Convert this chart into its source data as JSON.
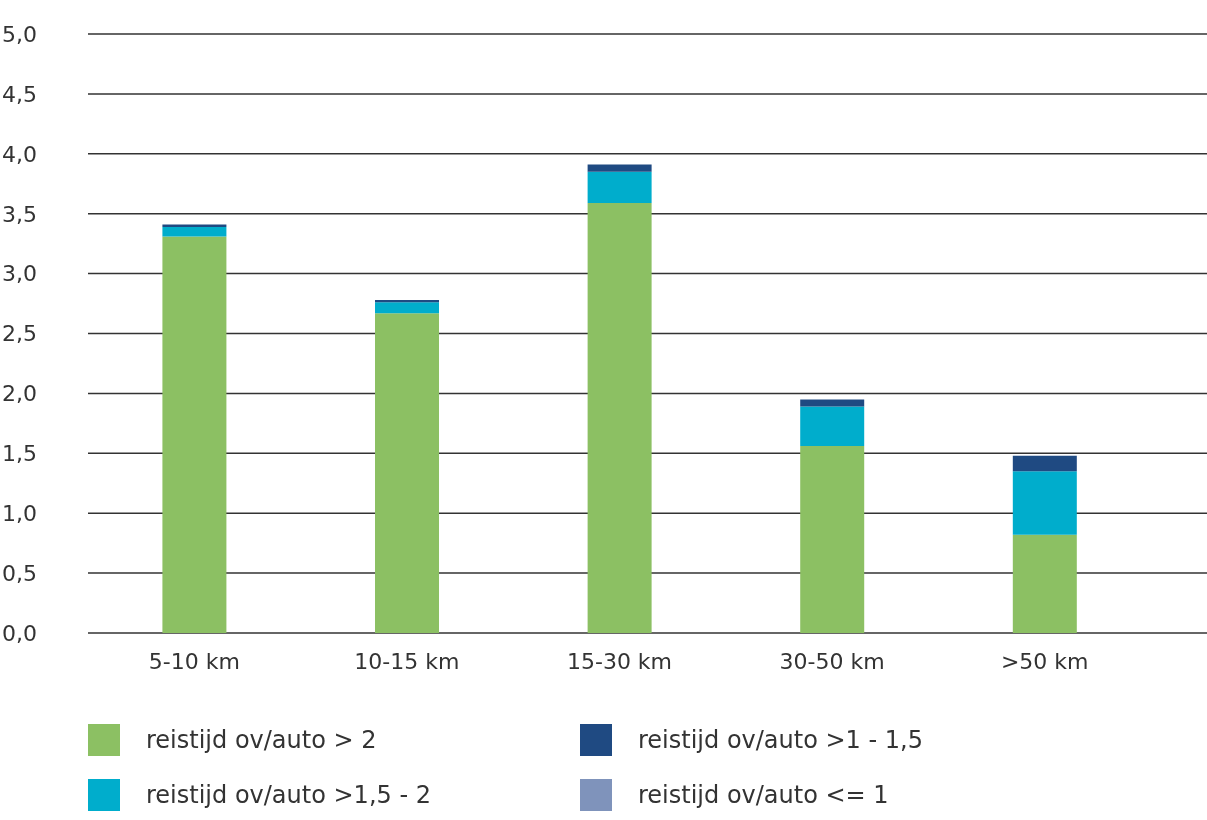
{
  "chart_data": {
    "type": "bar",
    "stacked": true,
    "categories": [
      "5-10 km",
      "10-15 km",
      "15-30 km",
      "30-50 km",
      ">50 km"
    ],
    "series": [
      {
        "name": "reistijd ov/auto > 2",
        "color": "#8cc063",
        "values": [
          3.31,
          2.67,
          3.59,
          1.56,
          0.82
        ]
      },
      {
        "name": "reistijd ov/auto >1,5 - 2",
        "color": "#00adcc",
        "values": [
          0.08,
          0.09,
          0.26,
          0.33,
          0.53
        ]
      },
      {
        "name": "reistijd ov/auto >1 - 1,5",
        "color": "#1f4a82",
        "values": [
          0.02,
          0.02,
          0.06,
          0.06,
          0.13
        ]
      },
      {
        "name": "reistijd ov/auto <= 1",
        "color": "#7f93bb",
        "values": [
          0,
          0,
          0,
          0,
          0
        ]
      }
    ],
    "ylim": [
      0,
      5
    ],
    "yticks": [
      {
        "value": 0,
        "label": "0,0"
      },
      {
        "value": 0.5,
        "label": "0,5"
      },
      {
        "value": 1,
        "label": "1,0"
      },
      {
        "value": 1.5,
        "label": "1,5"
      },
      {
        "value": 2,
        "label": "2,0"
      },
      {
        "value": 2.5,
        "label": "2,5"
      },
      {
        "value": 3,
        "label": "3,0"
      },
      {
        "value": 3.5,
        "label": "3,5"
      },
      {
        "value": 4,
        "label": "4,0"
      },
      {
        "value": 4.5,
        "label": "4,5"
      },
      {
        "value": 5,
        "label": "5,0"
      }
    ],
    "grid": "y",
    "legend": "bottom"
  }
}
